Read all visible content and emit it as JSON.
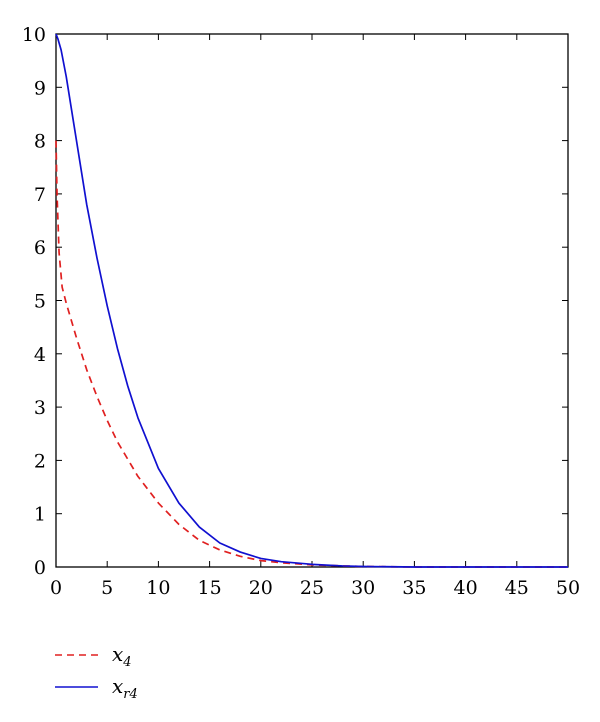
{
  "chart_data": {
    "type": "line",
    "title": "",
    "xlabel": "",
    "ylabel": "",
    "xlim": [
      0,
      50
    ],
    "ylim": [
      0,
      10
    ],
    "xticks": [
      0,
      5,
      10,
      15,
      20,
      25,
      30,
      35,
      40,
      45,
      50
    ],
    "yticks": [
      0,
      1,
      2,
      3,
      4,
      5,
      6,
      7,
      8,
      9,
      10
    ],
    "grid": false,
    "legend_position": "bottom-left outside",
    "series": [
      {
        "name": "x4",
        "name_main": "x",
        "name_sub": "4",
        "color": "#e02020",
        "style": "dashed",
        "x": [
          0,
          0.1,
          0.3,
          0.6,
          1,
          2,
          3,
          4,
          5,
          6,
          8,
          10,
          12,
          14,
          16,
          18,
          20,
          22,
          25,
          28,
          30,
          35,
          40,
          45,
          50
        ],
        "y": [
          8.0,
          7.0,
          5.9,
          5.25,
          4.95,
          4.3,
          3.7,
          3.2,
          2.75,
          2.35,
          1.7,
          1.2,
          0.8,
          0.5,
          0.32,
          0.2,
          0.12,
          0.08,
          0.04,
          0.02,
          0.01,
          0.0,
          0.0,
          0.0,
          0.0
        ]
      },
      {
        "name": "xr4",
        "name_main": "x",
        "name_sub": "r4",
        "color": "#1010d0",
        "style": "solid",
        "x": [
          0,
          0.2,
          0.5,
          1,
          2,
          3,
          4,
          5,
          6,
          7,
          8,
          10,
          12,
          14,
          16,
          18,
          20,
          22,
          25,
          28,
          30,
          35,
          40,
          45,
          50
        ],
        "y": [
          10.0,
          9.9,
          9.7,
          9.2,
          8.0,
          6.8,
          5.8,
          4.9,
          4.1,
          3.4,
          2.8,
          1.85,
          1.2,
          0.75,
          0.45,
          0.28,
          0.16,
          0.1,
          0.05,
          0.02,
          0.01,
          0.0,
          0.0,
          0.0,
          0.0
        ]
      }
    ]
  }
}
